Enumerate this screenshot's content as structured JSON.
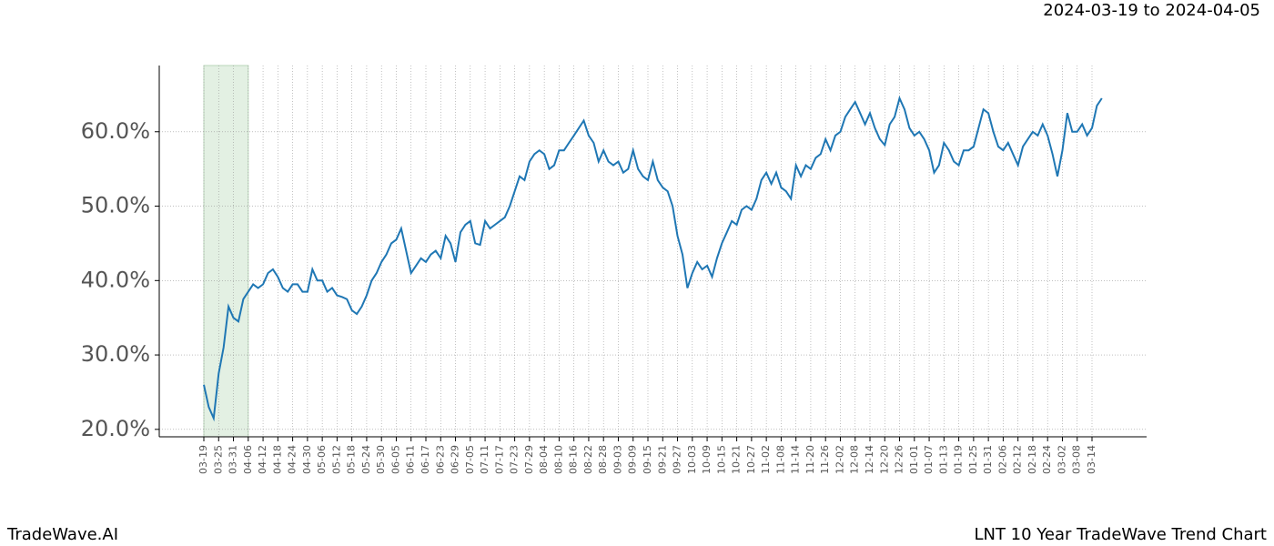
{
  "chart_data": {
    "type": "line",
    "title": "2024-03-19 to 2024-04-05",
    "footer_left": "TradeWave.AI",
    "footer_right": "LNT 10 Year TradeWave Trend Chart",
    "color": "#1f77b4",
    "highlight": [
      "03-19",
      "04-06"
    ],
    "highlight_color": "#e3f0e3",
    "grid": true,
    "ylim": [
      19,
      68.9
    ],
    "yticks": [
      {
        "value": 20,
        "label": "20.0%"
      },
      {
        "value": 30,
        "label": "30.0%"
      },
      {
        "value": 40,
        "label": "40.0%"
      },
      {
        "value": 50,
        "label": "50.0%"
      },
      {
        "value": 60,
        "label": "60.0%"
      }
    ],
    "categories": [
      "03-19",
      null,
      null,
      "03-25",
      null,
      null,
      "03-31",
      null,
      null,
      "04-06",
      null,
      null,
      "04-12",
      null,
      null,
      "04-18",
      null,
      null,
      "04-24",
      null,
      null,
      "04-30",
      null,
      null,
      "05-06",
      null,
      null,
      "05-12",
      null,
      null,
      "05-18",
      null,
      null,
      "05-24",
      null,
      null,
      "05-30",
      null,
      null,
      "06-05",
      null,
      null,
      "06-11",
      null,
      null,
      "06-17",
      null,
      null,
      "06-23",
      null,
      null,
      "06-29",
      null,
      null,
      "07-05",
      null,
      null,
      "07-11",
      null,
      null,
      "07-17",
      null,
      null,
      "07-23",
      null,
      null,
      "07-29",
      null,
      null,
      "08-04",
      null,
      null,
      "08-10",
      null,
      null,
      "08-16",
      null,
      null,
      "08-22",
      null,
      null,
      "08-28",
      null,
      null,
      "09-03",
      null,
      null,
      "09-09",
      null,
      null,
      "09-15",
      null,
      null,
      "09-21",
      null,
      null,
      "09-27",
      null,
      null,
      "10-03",
      null,
      null,
      "10-09",
      null,
      null,
      "10-15",
      null,
      null,
      "10-21",
      null,
      null,
      "10-27",
      null,
      null,
      "11-02",
      null,
      null,
      "11-08",
      null,
      null,
      "11-14",
      null,
      null,
      "11-20",
      null,
      null,
      "11-26",
      null,
      null,
      "12-02",
      null,
      null,
      "12-08",
      null,
      null,
      "12-14",
      null,
      null,
      "12-20",
      null,
      null,
      "12-26",
      null,
      null,
      "01-01",
      null,
      null,
      "01-07",
      null,
      null,
      "01-13",
      null,
      null,
      "01-19",
      null,
      null,
      "01-25",
      null,
      null,
      "01-31",
      null,
      null,
      "02-06",
      null,
      null,
      "02-12",
      null,
      null,
      "02-18",
      null,
      null,
      "02-24",
      null,
      null,
      "03-02",
      null,
      null,
      "03-08",
      null,
      null,
      "03-14",
      null,
      null
    ],
    "values": [
      26,
      23,
      21.5,
      27.5,
      31,
      36.5,
      35,
      34.5,
      37.5,
      38.5,
      39.5,
      39,
      39.5,
      41,
      41.5,
      40.5,
      39,
      38.5,
      39.5,
      39.5,
      38.5,
      38.5,
      41.5,
      40,
      40,
      38.5,
      39,
      38,
      37.8,
      37.5,
      36,
      35.5,
      36.5,
      38,
      40,
      41,
      42.5,
      43.5,
      45,
      45.5,
      47,
      44,
      41,
      42,
      43,
      42.5,
      43.5,
      44,
      43,
      46,
      45,
      42.5,
      46.5,
      47.5,
      48,
      45,
      44.8,
      48,
      47,
      47.5,
      48,
      48.5,
      50,
      52,
      54,
      53.5,
      56,
      57,
      57.5,
      57,
      55,
      55.5,
      57.5,
      57.5,
      58.5,
      59.5,
      60.5,
      61.5,
      59.5,
      58.5,
      56,
      57.5,
      56,
      55.5,
      56,
      54.5,
      55,
      57.5,
      55,
      54,
      53.5,
      56,
      53.5,
      52.5,
      52,
      50,
      46,
      43.5,
      39,
      41,
      42.5,
      41.5,
      42,
      40.5,
      43,
      45,
      46.5,
      48,
      47.5,
      49.5,
      50,
      49.5,
      51,
      53.5,
      54.5,
      53,
      54.5,
      52.5,
      52,
      51,
      55.5,
      54,
      55.5,
      55,
      56.5,
      57,
      59,
      57.5,
      59.5,
      60,
      62,
      63,
      64,
      62.5,
      61,
      62.5,
      60.5,
      59,
      58.2,
      61,
      62,
      64.5,
      63,
      60.5,
      59.5,
      60,
      59,
      57.5,
      54.5,
      55.5,
      58.5,
      57.5,
      56,
      55.5,
      57.5,
      57.5,
      58,
      60.5,
      63,
      62.5,
      60,
      58,
      57.5,
      58.5,
      57,
      55.5,
      58,
      59,
      60,
      59.5,
      61,
      59.5,
      57,
      54,
      57.5,
      62.5,
      60,
      60,
      61,
      59.5,
      60.5,
      63.5,
      64.5
    ]
  }
}
